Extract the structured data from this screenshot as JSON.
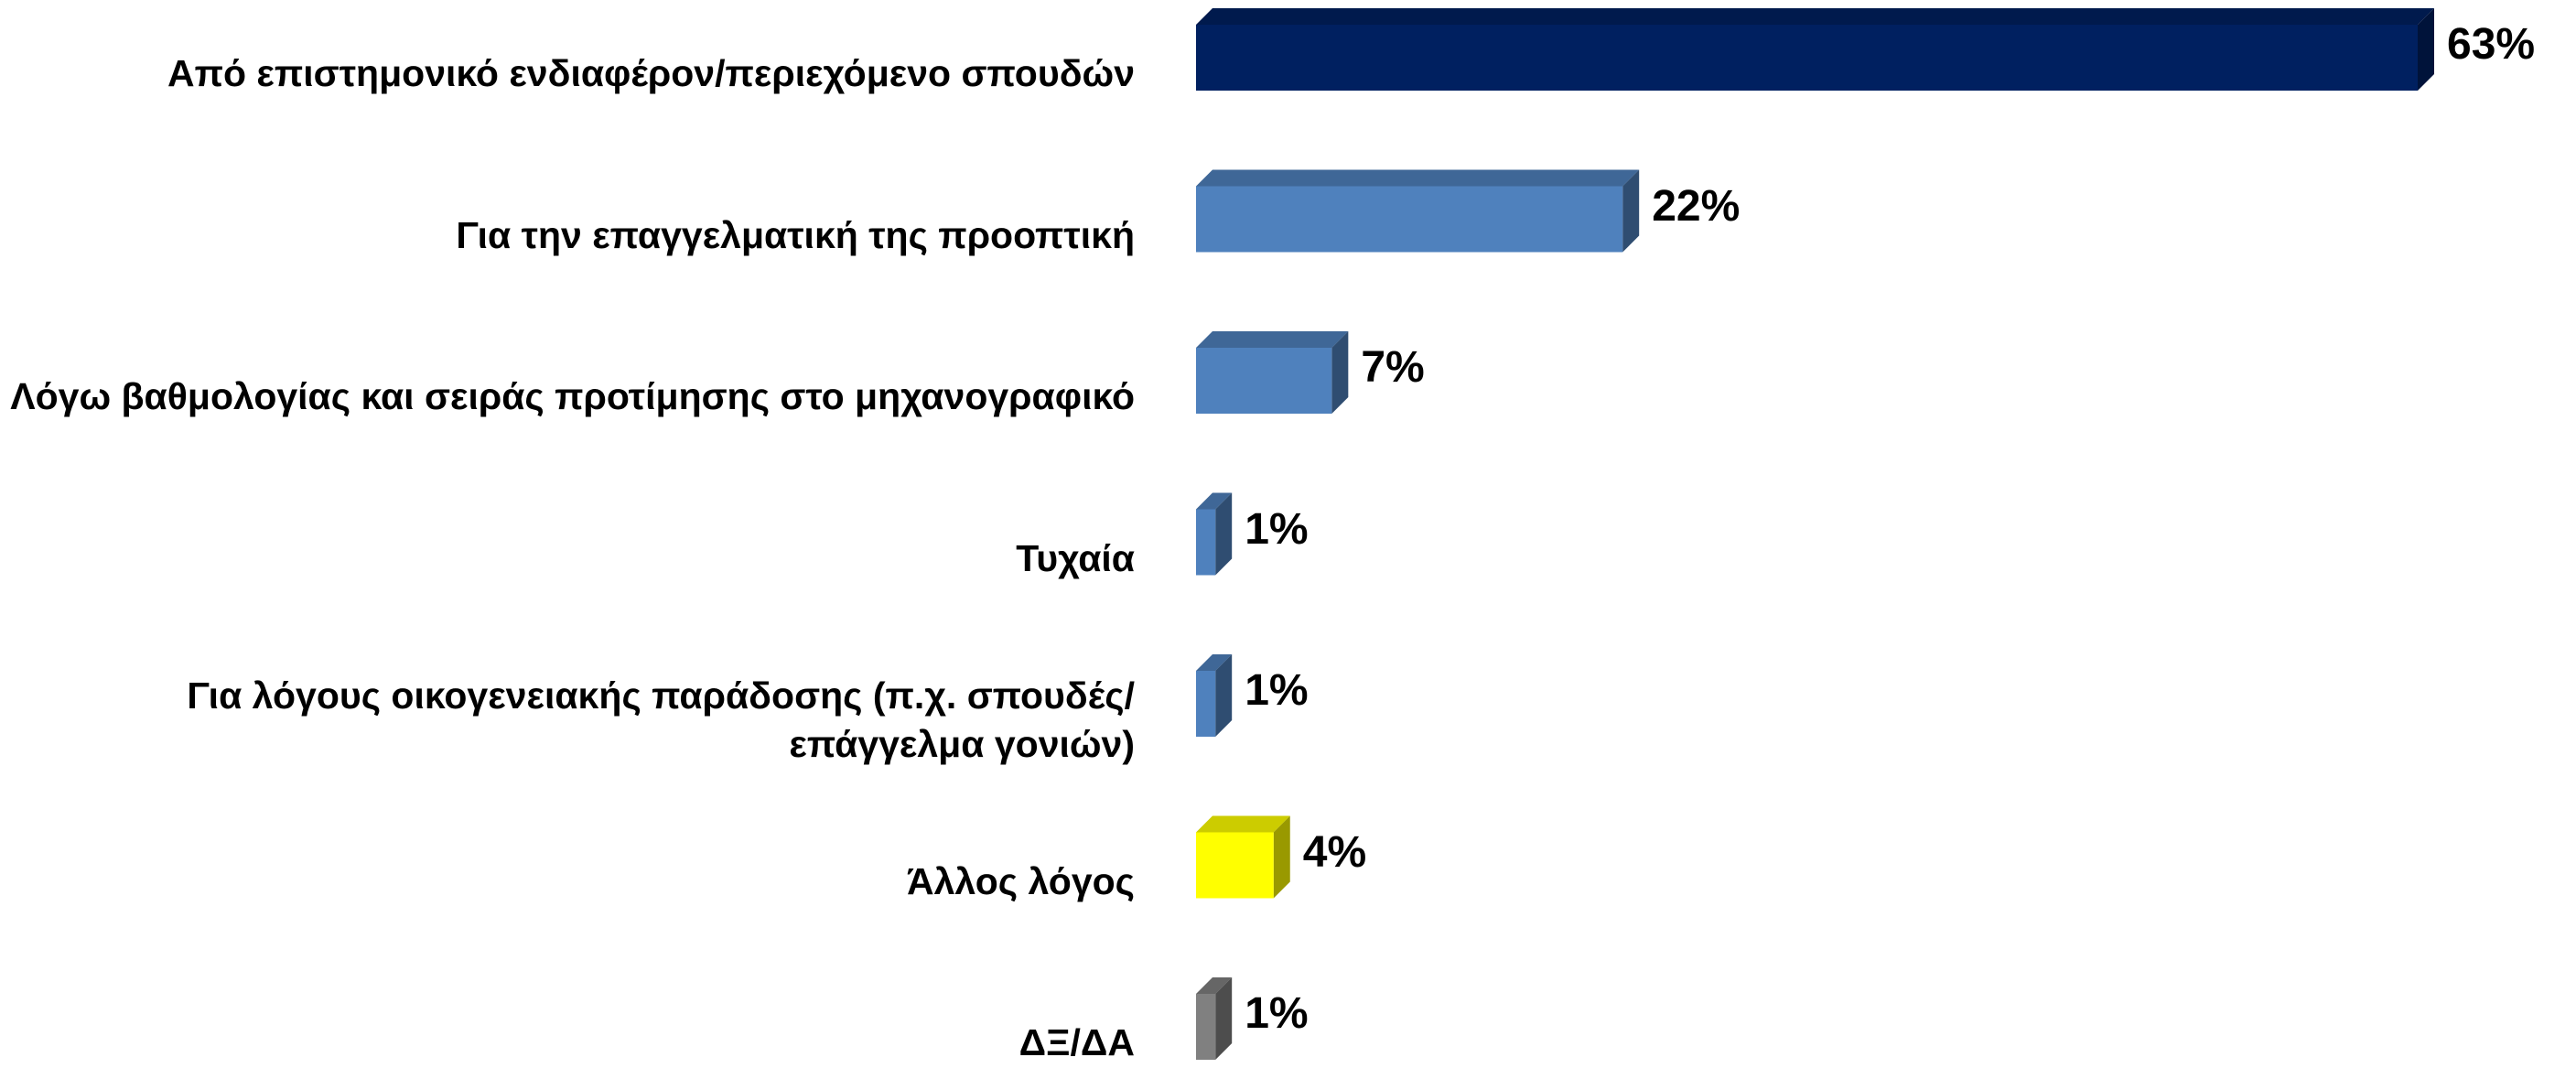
{
  "chart_data": {
    "type": "bar3d",
    "categories": [
      "Από επιστημονικό ενδιαφέρον/περιεχόμενο σπουδών",
      "Για την επαγγελματική της προοπτική",
      "Λόγω βαθμολογίας και σειράς προτίμησης στο μηχανογραφικό",
      "Τυχαία",
      "Για λόγους οικογενειακής παράδοσης (π.χ. σπουδές/επάγγελμα γονιών)",
      "Άλλος λόγος",
      "ΔΞ/ΔΑ"
    ],
    "values": [
      63,
      22,
      7,
      1,
      1,
      4,
      1
    ],
    "value_labels": [
      "63%",
      "22%",
      "7%",
      "1%",
      "1%",
      "4%",
      "1%"
    ],
    "colors": [
      "#002060",
      "#4f81bd",
      "#4f81bd",
      "#4f81bd",
      "#4f81bd",
      "#ffff00",
      "#808080"
    ]
  }
}
